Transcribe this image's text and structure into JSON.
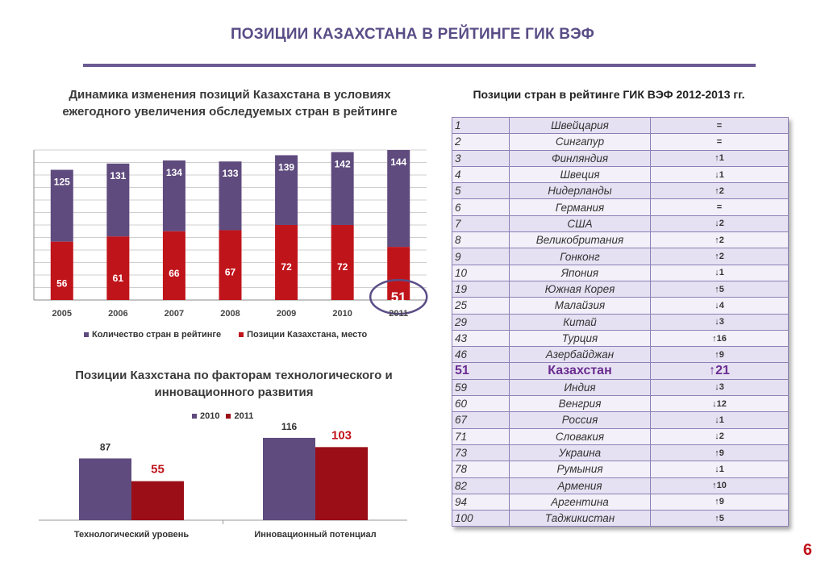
{
  "page_title": "ПОЗИЦИИ КАЗАХСТАНА В РЕЙТИНГЕ ГИК ВЭФ",
  "page_number": "6",
  "colors": {
    "purple": "#5f4b7e",
    "red": "#c0141b",
    "darkred": "#9b0e18",
    "title": "#5a4d86",
    "up": "#2a8a3a",
    "down": "#c0141b"
  },
  "chart_data": [
    {
      "type": "bar",
      "title": "Динамика изменения позиций Казахстана в условиях ежегодного увеличения   обследуемых стран в рейтинге",
      "categories": [
        "2005",
        "2006",
        "2007",
        "2008",
        "2009",
        "2010",
        "2011"
      ],
      "series": [
        {
          "name": "Количество стран в рейтинге",
          "values": [
            125,
            131,
            134,
            133,
            139,
            142,
            144
          ]
        },
        {
          "name": "Позиции Казахстана, место",
          "values": [
            56,
            61,
            66,
            67,
            72,
            72,
            51
          ]
        }
      ],
      "highlight": {
        "category": "2011",
        "label": "51"
      },
      "ylim": [
        0,
        144
      ],
      "grid": true,
      "legend_position": "bottom"
    },
    {
      "type": "bar",
      "title": "Позиции Казхстана по факторам технологического и инновационного развития",
      "categories": [
        "Технологический уровень",
        "Инновационный потенциал"
      ],
      "series": [
        {
          "name": "2010",
          "values": [
            87,
            116
          ]
        },
        {
          "name": "2011",
          "values": [
            55,
            103
          ]
        }
      ],
      "legend_position": "top"
    }
  ],
  "table": {
    "title": "Позиции стран в рейтинге ГИК ВЭФ 2012-2013 гг.",
    "rows": [
      {
        "rank": "1",
        "country": "Швейцария",
        "change": "=",
        "dir": "eq"
      },
      {
        "rank": "2",
        "country": "Сингапур",
        "change": "=",
        "dir": "eq"
      },
      {
        "rank": "3",
        "country": "Финляндия",
        "change": "↑1",
        "dir": "up"
      },
      {
        "rank": "4",
        "country": "Швеция",
        "change": "↓1",
        "dir": "down"
      },
      {
        "rank": "5",
        "country": "Нидерланды",
        "change": "↑2",
        "dir": "up"
      },
      {
        "rank": "6",
        "country": "Германия",
        "change": "=",
        "dir": "eq"
      },
      {
        "rank": "7",
        "country": "США",
        "change": "↓2",
        "dir": "down"
      },
      {
        "rank": "8",
        "country": "Великобритания",
        "change": "↑2",
        "dir": "up"
      },
      {
        "rank": "9",
        "country": "Гонконг",
        "change": "↑2",
        "dir": "up"
      },
      {
        "rank": "10",
        "country": "Япония",
        "change": "↓1",
        "dir": "down"
      },
      {
        "rank": "19",
        "country": "Южная Корея",
        "change": "↑5",
        "dir": "up"
      },
      {
        "rank": "25",
        "country": "Малайзия",
        "change": "↓4",
        "dir": "down"
      },
      {
        "rank": "29",
        "country": "Китай",
        "change": "↓3",
        "dir": "down"
      },
      {
        "rank": "43",
        "country": "Турция",
        "change": "↑16",
        "dir": "up"
      },
      {
        "rank": "46",
        "country": "Азербайджан",
        "change": "↑9",
        "dir": "up"
      },
      {
        "rank": "51",
        "country": "Казахстан",
        "change": "↑21",
        "dir": "up",
        "highlight": true
      },
      {
        "rank": "59",
        "country": "Индия",
        "change": "↓3",
        "dir": "down"
      },
      {
        "rank": "60",
        "country": "Венгрия",
        "change": "↓12",
        "dir": "down"
      },
      {
        "rank": "67",
        "country": "Россия",
        "change": "↓1",
        "dir": "down"
      },
      {
        "rank": "71",
        "country": "Словакия",
        "change": "↓2",
        "dir": "down"
      },
      {
        "rank": "73",
        "country": "Украина",
        "change": "↑9",
        "dir": "up"
      },
      {
        "rank": "78",
        "country": "Румыния",
        "change": "↓1",
        "dir": "down"
      },
      {
        "rank": "82",
        "country": "Армения",
        "change": "↑10",
        "dir": "up"
      },
      {
        "rank": "94",
        "country": "Аргентина",
        "change": "↑9",
        "dir": "up"
      },
      {
        "rank": "100",
        "country": "Таджикистан",
        "change": "↑5",
        "dir": "up"
      }
    ]
  }
}
